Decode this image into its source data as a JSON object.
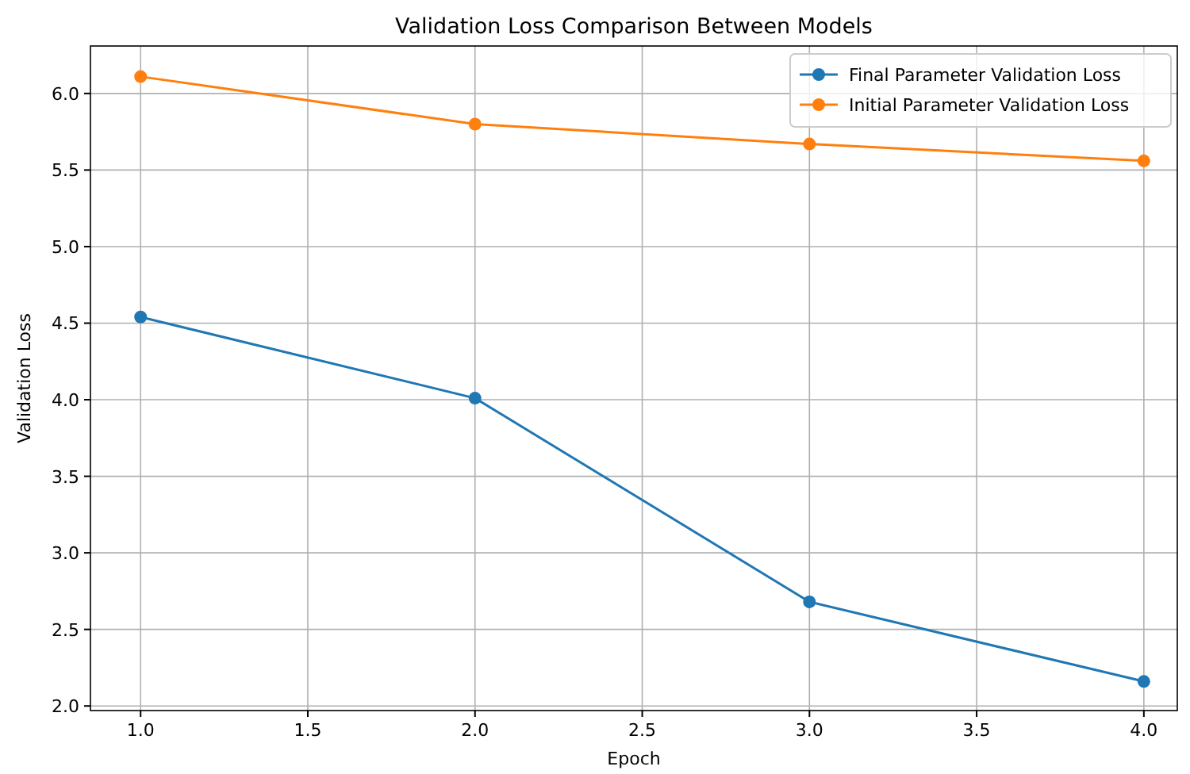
{
  "chart_data": {
    "type": "line",
    "title": "Validation Loss Comparison Between Models",
    "xlabel": "Epoch",
    "ylabel": "Validation Loss",
    "x": [
      1,
      2,
      3,
      4
    ],
    "series": [
      {
        "name": "Final Parameter Validation Loss",
        "color": "#1f77b4",
        "values": [
          4.54,
          4.01,
          2.68,
          2.16
        ]
      },
      {
        "name": "Initial Parameter Validation Loss",
        "color": "#ff7f0e",
        "values": [
          6.11,
          5.8,
          5.67,
          5.56
        ]
      }
    ],
    "xlim": [
      0.85,
      4.1
    ],
    "xticks": [
      {
        "value": 1,
        "label": "1.0"
      },
      1.5,
      {
        "value": 2,
        "label": "2.0"
      },
      2.5,
      {
        "value": 3,
        "label": "3.0"
      },
      3.5,
      {
        "value": 4,
        "label": "4.0"
      }
    ],
    "ylim": [
      1.97,
      6.31
    ],
    "yticks": [
      {
        "value": 2,
        "label": "2.0"
      },
      2.5,
      {
        "value": 3,
        "label": "3.0"
      },
      3.5,
      {
        "value": 4,
        "label": "4.0"
      },
      4.5,
      {
        "value": 5,
        "label": "5.0"
      },
      5.5,
      {
        "value": 6,
        "label": "6.0"
      }
    ],
    "grid": true,
    "legend": "top right",
    "marker": "circle",
    "line_style": "solid"
  }
}
